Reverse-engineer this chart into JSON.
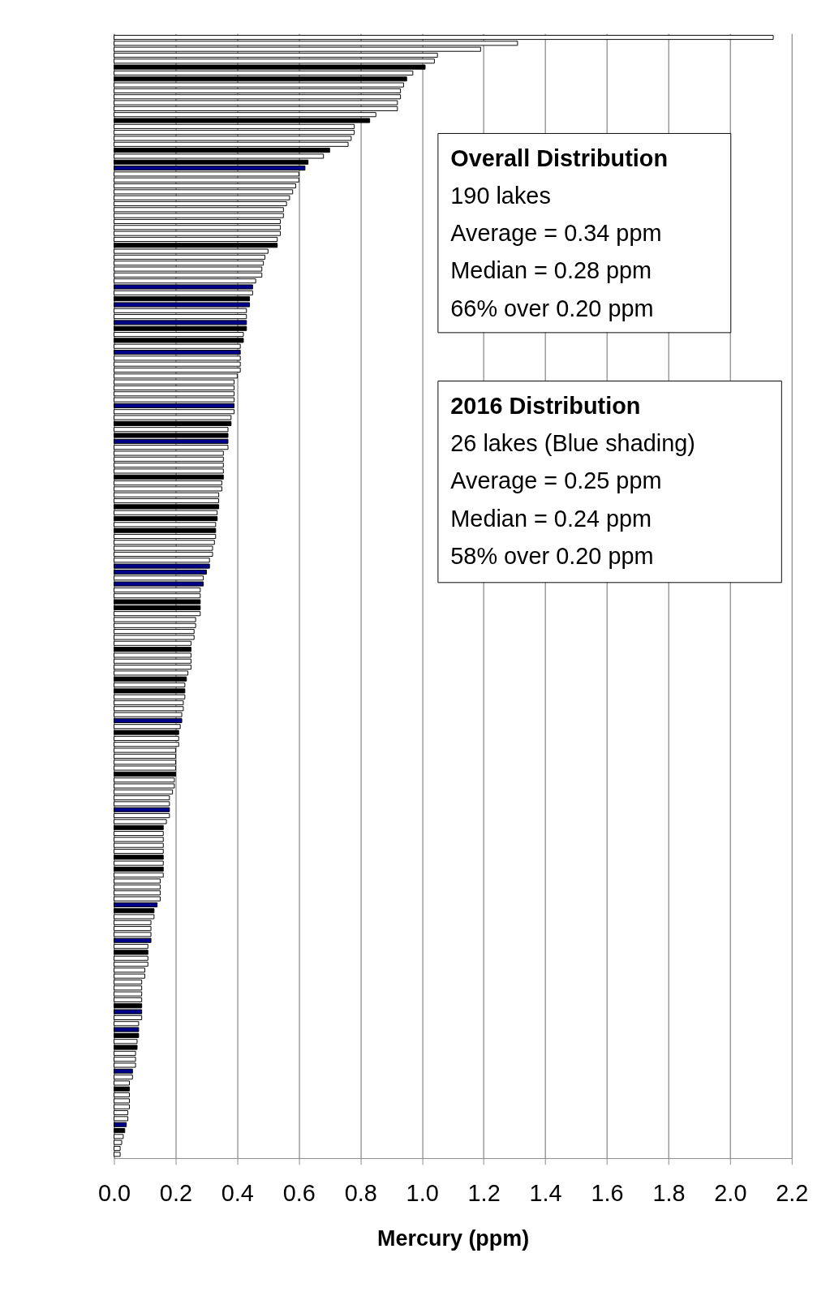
{
  "chart_data": {
    "type": "bar",
    "orientation": "horizontal",
    "xlabel": "Mercury (ppm)",
    "categories": [
      null,
      null,
      null,
      null,
      null,
      null,
      null,
      null,
      null,
      null,
      null,
      null,
      null,
      null,
      null,
      null,
      null,
      null,
      null,
      null,
      null,
      null,
      null,
      null,
      null,
      null,
      null,
      null,
      null,
      null,
      null,
      null,
      null,
      null,
      null,
      null,
      null,
      null,
      null,
      null,
      null,
      null,
      null,
      null,
      null,
      null,
      null,
      null,
      null,
      null,
      null,
      null,
      null,
      null,
      null,
      null,
      null,
      null,
      null,
      null,
      null,
      null,
      null,
      null,
      null,
      null,
      null,
      null,
      null,
      null,
      null,
      null,
      null,
      null,
      null,
      null,
      null,
      null,
      null,
      null,
      null,
      null,
      null,
      null,
      null,
      null,
      null,
      null,
      null,
      null,
      null,
      null,
      null,
      null,
      null,
      null,
      null,
      null,
      null,
      null,
      null,
      null,
      null,
      null,
      null,
      null,
      null,
      null,
      null,
      null,
      null,
      null,
      null,
      null,
      null,
      null,
      null,
      null,
      null,
      null,
      null,
      null,
      null,
      null,
      null,
      null,
      null,
      null,
      null,
      null,
      null,
      null,
      null,
      null,
      null,
      null,
      null,
      null,
      null,
      null,
      null,
      null,
      null,
      null,
      null,
      null,
      null,
      null,
      null,
      null,
      null,
      null,
      null,
      null,
      null,
      null,
      null,
      null,
      null,
      null,
      null,
      null,
      null,
      null,
      null,
      null,
      null,
      null,
      null,
      null,
      null,
      null,
      null,
      null,
      null,
      null,
      null,
      null,
      null,
      null,
      null,
      null,
      null,
      null,
      null,
      null,
      null,
      null,
      null,
      null
    ],
    "values": [
      2.14,
      1.31,
      1.19,
      1.05,
      1.04,
      1.01,
      0.97,
      0.95,
      0.94,
      0.93,
      0.93,
      0.92,
      0.92,
      0.85,
      0.83,
      0.78,
      0.78,
      0.77,
      0.76,
      0.7,
      0.68,
      0.63,
      0.62,
      0.6,
      0.6,
      0.59,
      0.58,
      0.57,
      0.56,
      0.55,
      0.55,
      0.54,
      0.54,
      0.54,
      0.53,
      0.53,
      0.5,
      0.49,
      0.485,
      0.48,
      0.48,
      0.46,
      0.45,
      0.45,
      0.44,
      0.44,
      0.43,
      0.43,
      0.43,
      0.43,
      0.42,
      0.42,
      0.41,
      0.41,
      0.41,
      0.41,
      0.41,
      0.4,
      0.39,
      0.39,
      0.39,
      0.39,
      0.39,
      0.39,
      0.38,
      0.38,
      0.37,
      0.37,
      0.37,
      0.37,
      0.355,
      0.355,
      0.355,
      0.355,
      0.355,
      0.35,
      0.35,
      0.34,
      0.34,
      0.34,
      0.335,
      0.335,
      0.33,
      0.33,
      0.33,
      0.326,
      0.32,
      0.32,
      0.31,
      0.31,
      0.3,
      0.29,
      0.29,
      0.28,
      0.28,
      0.28,
      null,
      0.28,
      0.28,
      0.265,
      0.265,
      0.26,
      0.26,
      0.25,
      0.25,
      0.25,
      0.25,
      0.25,
      0.24,
      0.235,
      0.23,
      0.23,
      0.23,
      0.225,
      0.225,
      0.22,
      0.22,
      0.215,
      0.21,
      0.21,
      0.21,
      0.2,
      0.2,
      0.2,
      0.2,
      0.2,
      0.196,
      0.196,
      0.19,
      0.18,
      0.18,
      0.18,
      0.18,
      0.17,
      0.16,
      0.16,
      0.16,
      0.16,
      0.16,
      0.16,
      0.16,
      0.16,
      0.16,
      0.15,
      0.15,
      0.15,
      0.15,
      0.14,
      0.13,
      0.13,
      0.12,
      0.12,
      0.12,
      0.12,
      0.11,
      0.11,
      0.11,
      0.11,
      0.1,
      0.1,
      0.09,
      0.09,
      0.09,
      0.09,
      0.09,
      0.09,
      0.09,
      0.08,
      0.08,
      0.08,
      0.075,
      0.075,
      0.07,
      0.07,
      0.07,
      0.06,
      0.06,
      0.05,
      0.05,
      0.05,
      0.05,
      0.05,
      0.045,
      0.045,
      0.04,
      0.035,
      0.03,
      0.025,
      0.02,
      0.02
    ],
    "colors": [
      "#ffffff",
      "#ffffff",
      "#ffffff",
      "#ffffff",
      "#ffffff",
      "#000000",
      "#ffffff",
      "#000000",
      "#ffffff",
      "#ffffff",
      "#ffffff",
      "#ffffff",
      "#ffffff",
      "#ffffff",
      "#000000",
      "#ffffff",
      "#ffffff",
      "#ffffff",
      "#ffffff",
      "#000000",
      "#ffffff",
      "#000000",
      "#00008b",
      "#ffffff",
      "#ffffff",
      "#ffffff",
      "#ffffff",
      "#ffffff",
      "#ffffff",
      "#ffffff",
      "#ffffff",
      "#ffffff",
      "#ffffff",
      "#ffffff",
      "#ffffff",
      "#000000",
      "#ffffff",
      "#ffffff",
      "#ffffff",
      "#ffffff",
      "#ffffff",
      "#ffffff",
      "#00008b",
      "#ffffff",
      "#000000",
      "#00008b",
      "#ffffff",
      "#ffffff",
      "#00008b",
      "#000000",
      "#ffffff",
      "#000000",
      "#ffffff",
      "#00008b",
      "#ffffff",
      "#ffffff",
      "#ffffff",
      "#ffffff",
      "#ffffff",
      "#ffffff",
      "#ffffff",
      "#ffffff",
      "#00008b",
      "#ffffff",
      "#ffffff",
      "#000000",
      "#ffffff",
      "#000000",
      "#00008b",
      "#ffffff",
      "#ffffff",
      "#ffffff",
      "#ffffff",
      "#ffffff",
      "#000000",
      "#ffffff",
      "#ffffff",
      "#ffffff",
      "#ffffff",
      "#000000",
      "#ffffff",
      "#000000",
      "#ffffff",
      "#000000",
      "#ffffff",
      "#ffffff",
      "#ffffff",
      "#ffffff",
      "#ffffff",
      "#00008b",
      "#00008b",
      "#ffffff",
      "#00008b",
      "#ffffff",
      "#ffffff",
      "#000000",
      "#ffffff",
      "#000000",
      "#ffffff",
      "#ffffff",
      "#ffffff",
      "#ffffff",
      "#ffffff",
      "#ffffff",
      "#000000",
      "#ffffff",
      "#ffffff",
      "#ffffff",
      "#ffffff",
      "#000000",
      "#ffffff",
      "#000000",
      "#ffffff",
      "#ffffff",
      "#ffffff",
      "#ffffff",
      "#00008b",
      "#ffffff",
      "#000000",
      "#ffffff",
      "#ffffff",
      "#ffffff",
      "#ffffff",
      "#ffffff",
      "#ffffff",
      "#000000",
      "#ffffff",
      "#ffffff",
      "#ffffff",
      "#ffffff",
      "#ffffff",
      "#00008b",
      "#ffffff",
      "#ffffff",
      "#000000",
      "#ffffff",
      "#ffffff",
      "#ffffff",
      "#ffffff",
      "#000000",
      "#ffffff",
      "#000000",
      "#ffffff",
      "#ffffff",
      "#ffffff",
      "#ffffff",
      "#ffffff",
      "#00008b",
      "#000000",
      "#ffffff",
      "#ffffff",
      "#ffffff",
      "#ffffff",
      "#00008b",
      "#ffffff",
      "#000000",
      "#ffffff",
      "#ffffff",
      "#ffffff",
      "#ffffff",
      "#ffffff",
      "#ffffff",
      "#ffffff",
      "#ffffff",
      "#000000",
      "#00008b",
      "#ffffff",
      "#ffffff",
      "#00008b",
      "#000000",
      "#ffffff",
      "#000000",
      "#ffffff",
      "#ffffff",
      "#ffffff",
      "#00008b",
      "#ffffff",
      "#ffffff",
      "#000000",
      "#ffffff",
      "#ffffff",
      "#ffffff",
      "#ffffff",
      "#ffffff",
      "#00008b",
      "#000000",
      "#ffffff",
      "#ffffff",
      "#ffffff",
      "#ffffff"
    ],
    "xlim": [
      0,
      2.2
    ],
    "xticks": [
      {
        "value": 0,
        "label": "0.0"
      },
      {
        "value": 0.2,
        "label": "0.2"
      },
      {
        "value": 0.4,
        "label": "0.4"
      },
      {
        "value": 0.6,
        "label": "0.6"
      },
      {
        "value": 0.8,
        "label": "0.8"
      },
      {
        "value": 1.0,
        "label": "1.0"
      },
      {
        "value": 1.2,
        "label": "1.2"
      },
      {
        "value": 1.4,
        "label": "1.4"
      },
      {
        "value": 1.6,
        "label": "1.6"
      },
      {
        "value": 1.8,
        "label": "1.8"
      },
      {
        "value": 2.0,
        "label": "2.0"
      },
      {
        "value": 2.2,
        "label": "2.2"
      }
    ],
    "grid": "x",
    "annotations": [
      "Overall Distribution",
      "190 lakes",
      "Average = 0.34 ppm",
      "Median = 0.28 ppm",
      "66% over 0.20 ppm",
      "2016 Distribution",
      "26 lakes (Blue shading)",
      "Average = 0.25 ppm",
      "Median = 0.24 ppm",
      "58% over 0.20 ppm"
    ]
  }
}
